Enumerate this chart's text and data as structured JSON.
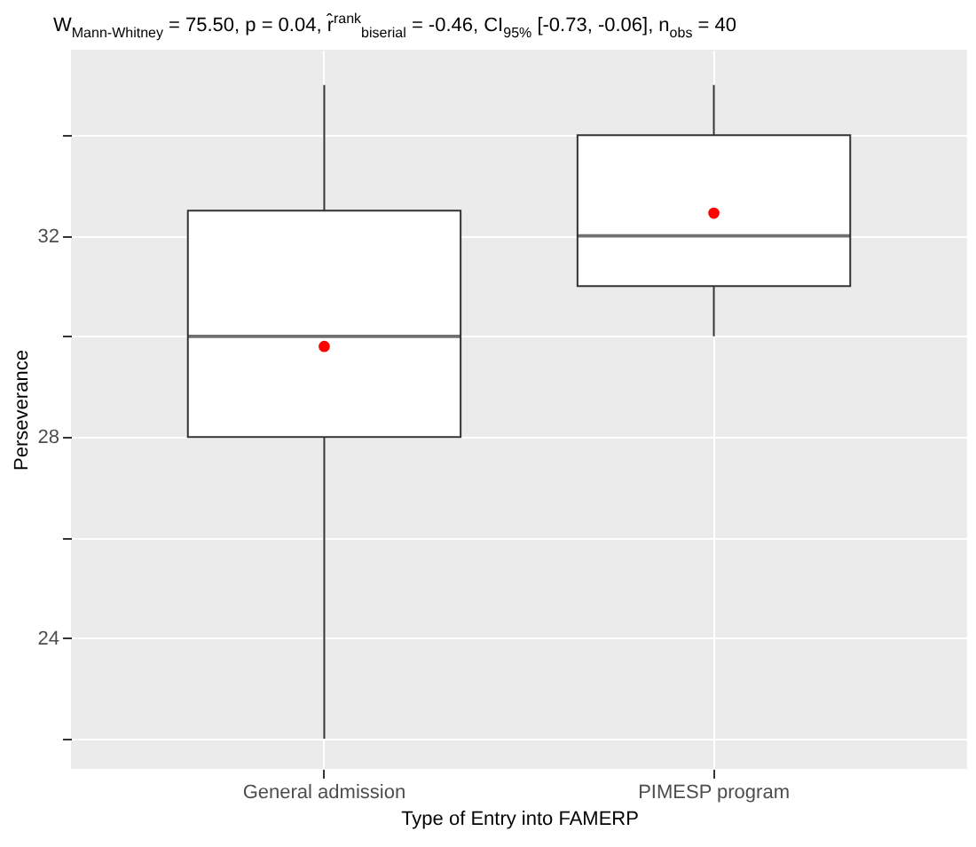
{
  "chart_data": {
    "type": "box",
    "title": "W$_{Mann-Whitney}$ = 75.50, p = 0.04, r̂$^{rank}$$_{biserial}$ = -0.46, CI$_{95%}$ [-0.73, -0.06], n$_{obs}$ = 40",
    "xlabel": "Type of Entry into FAMERP",
    "ylabel": "Perseverance",
    "categories": [
      "General admission",
      "PIMESP program"
    ],
    "boxes": [
      {
        "low": 22,
        "q1": 28,
        "median": 30,
        "q3": 32.5,
        "high": 35,
        "mean": 29.8
      },
      {
        "low": 30,
        "q1": 31,
        "median": 32,
        "q3": 34,
        "high": 35,
        "mean": 32.45
      }
    ],
    "ylim": [
      21.4,
      35.7
    ],
    "yticks": [
      {
        "value": 22,
        "label": null
      },
      24,
      {
        "value": 26,
        "label": null
      },
      28,
      {
        "value": 30,
        "label": null
      },
      32,
      {
        "value": 34,
        "label": null
      }
    ],
    "grid": true,
    "marker": "circle"
  }
}
